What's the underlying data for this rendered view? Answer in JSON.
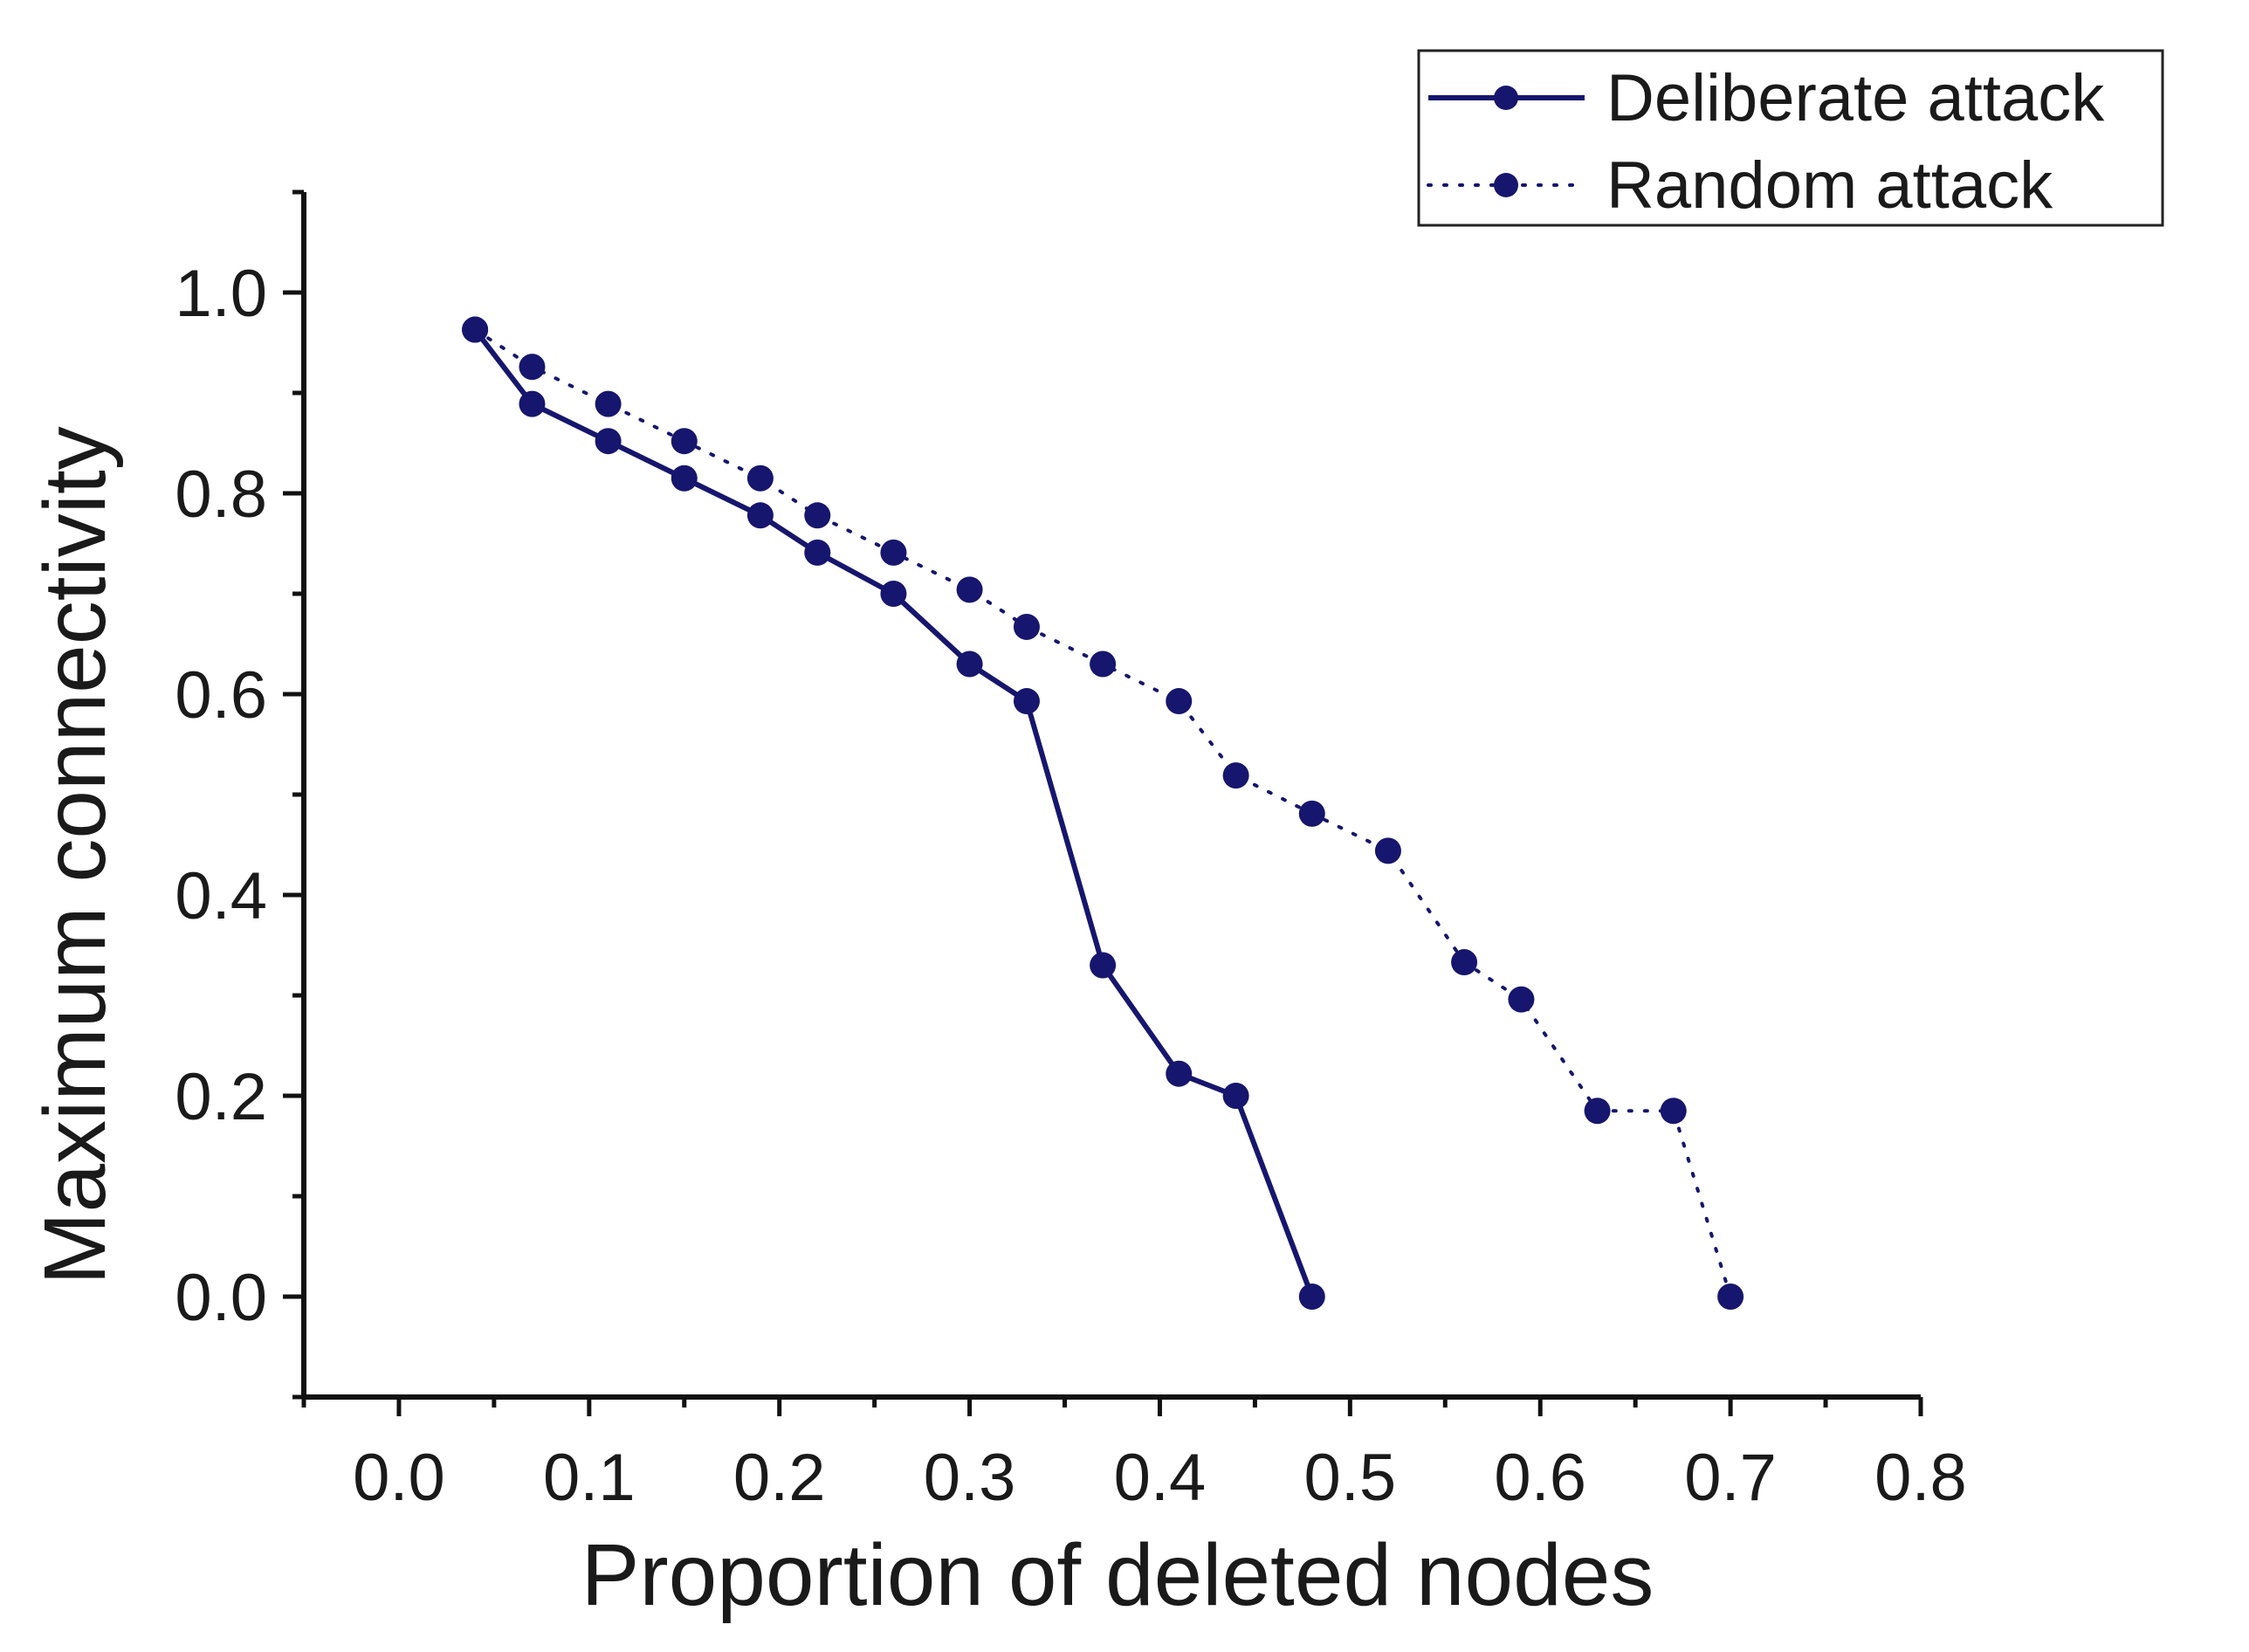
{
  "chart_data": {
    "type": "line",
    "xlabel": "Proportion of deleted nodes",
    "ylabel": "Maximum connectivity",
    "xlim": [
      -0.05,
      0.8
    ],
    "ylim": [
      -0.1,
      1.1
    ],
    "xticks": [
      0.0,
      0.1,
      0.2,
      0.3,
      0.4,
      0.5,
      0.6,
      0.7,
      0.8
    ],
    "xtick_labels": [
      "0.0",
      "0.1",
      "0.2",
      "0.3",
      "0.4",
      "0.5",
      "0.6",
      "0.7",
      "0.8"
    ],
    "yticks": [
      0.0,
      0.2,
      0.4,
      0.6,
      0.8,
      1.0
    ],
    "ytick_labels": [
      "0.0",
      "0.2",
      "0.4",
      "0.6",
      "0.8",
      "1.0"
    ],
    "grid": false,
    "legend_position": "top-right",
    "series": [
      {
        "name": "Deliberate attack",
        "style": "solid",
        "color": "#16166e",
        "x": [
          0.04,
          0.07,
          0.11,
          0.15,
          0.19,
          0.22,
          0.26,
          0.3,
          0.33,
          0.37,
          0.41,
          0.44,
          0.48
        ],
        "y": [
          0.963,
          0.889,
          0.852,
          0.815,
          0.778,
          0.741,
          0.7,
          0.63,
          0.593,
          0.33,
          0.222,
          0.2,
          0.0
        ]
      },
      {
        "name": "Random attack",
        "style": "dotted",
        "color": "#16166e",
        "x": [
          0.04,
          0.07,
          0.11,
          0.15,
          0.19,
          0.22,
          0.26,
          0.3,
          0.33,
          0.37,
          0.41,
          0.44,
          0.48,
          0.52,
          0.56,
          0.59,
          0.63,
          0.67,
          0.7
        ],
        "y": [
          0.963,
          0.926,
          0.889,
          0.852,
          0.815,
          0.778,
          0.741,
          0.704,
          0.667,
          0.63,
          0.593,
          0.519,
          0.481,
          0.444,
          0.333,
          0.296,
          0.185,
          0.185,
          0.0
        ]
      }
    ]
  }
}
